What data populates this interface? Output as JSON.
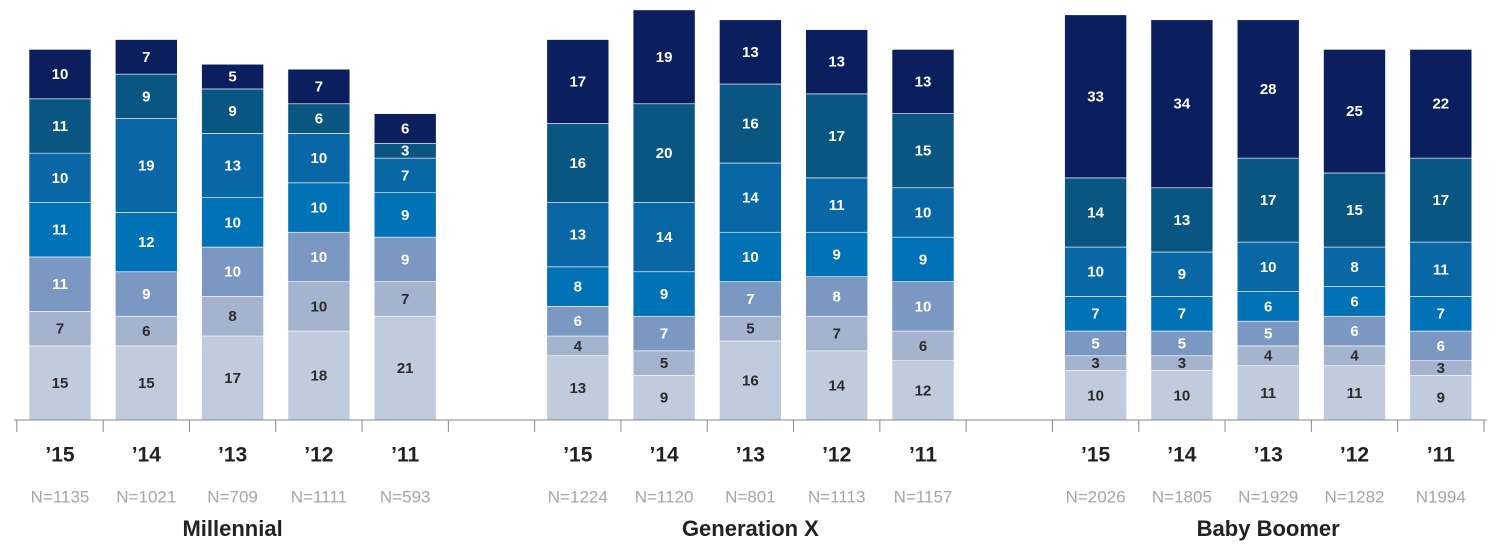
{
  "chart_data": {
    "type": "stacked_bar",
    "ylim": [
      0,
      85
    ],
    "groups": [
      {
        "name": "Millennial",
        "categories": [
          "’15",
          "’14",
          "’13",
          "’12",
          "’11"
        ],
        "n_labels": [
          "N=1135",
          "N=1021",
          "N=709",
          "N=1111",
          "N=593"
        ]
      },
      {
        "name": "Generation X",
        "categories": [
          "’15",
          "’14",
          "’13",
          "’12",
          "’11"
        ],
        "n_labels": [
          "N=1224",
          "N=1120",
          "N=801",
          "N=1113",
          "N=1157"
        ]
      },
      {
        "name": "Baby Boomer",
        "categories": [
          "’15",
          "’14",
          "’13",
          "’12",
          "’11"
        ],
        "n_labels": [
          "N=2026",
          "N=1805",
          "N=1929",
          "N=1282",
          "N1994"
        ]
      }
    ],
    "series": [
      {
        "color": "#c0cbdd",
        "label_color": "#2b2b2b",
        "values": [
          15,
          15,
          17,
          18,
          21,
          13,
          9,
          16,
          14,
          12,
          10,
          10,
          11,
          11,
          9
        ]
      },
      {
        "color": "#a5b4ce",
        "label_color": "#2b2b2b",
        "values": [
          7,
          6,
          8,
          10,
          7,
          4,
          5,
          5,
          7,
          6,
          3,
          3,
          4,
          4,
          3
        ]
      },
      {
        "color": "#7b98c2",
        "label_color": "#ffffff",
        "values": [
          11,
          9,
          10,
          10,
          9,
          6,
          7,
          7,
          8,
          10,
          5,
          5,
          5,
          6,
          6
        ]
      },
      {
        "color": "#0072b5",
        "label_color": "#ffffff",
        "values": [
          11,
          12,
          10,
          10,
          9,
          8,
          9,
          10,
          9,
          9,
          7,
          7,
          6,
          6,
          7
        ]
      },
      {
        "color": "#0967a6",
        "label_color": "#ffffff",
        "values": [
          10,
          19,
          13,
          10,
          7,
          13,
          14,
          14,
          11,
          10,
          10,
          9,
          10,
          8,
          11
        ]
      },
      {
        "color": "#0a5683",
        "label_color": "#ffffff",
        "values": [
          11,
          9,
          9,
          6,
          3,
          16,
          20,
          16,
          17,
          15,
          14,
          13,
          17,
          15,
          17
        ]
      },
      {
        "color": "#0b1f5e",
        "label_color": "#ffffff",
        "values": [
          10,
          7,
          5,
          7,
          6,
          17,
          19,
          13,
          13,
          13,
          33,
          34,
          28,
          25,
          22
        ]
      }
    ]
  }
}
